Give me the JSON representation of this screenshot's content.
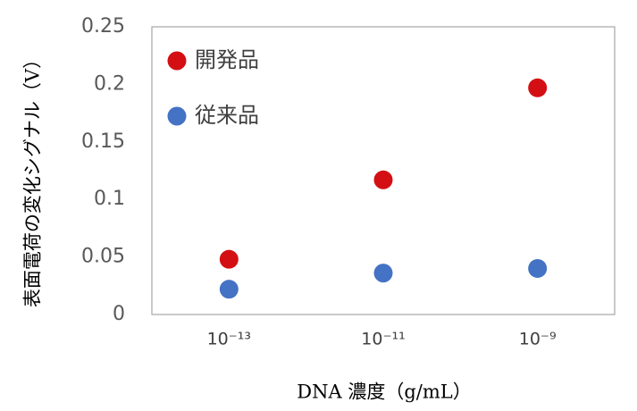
{
  "chart_data": {
    "type": "scatter",
    "y_label": "表面電荷の変化シグナル（V）",
    "x_label": "DNA 濃度（g/mL）",
    "categories": [
      "10⁻¹³",
      "10⁻¹¹",
      "10⁻⁹"
    ],
    "series": [
      {
        "name": "開発品",
        "color": "#d40f14",
        "values": [
          0.048,
          0.117,
          0.197
        ]
      },
      {
        "name": "従来品",
        "color": "#4472c4",
        "values": [
          0.022,
          0.036,
          0.04
        ]
      }
    ],
    "ylim": [
      0,
      0.25
    ],
    "yticks": [
      0,
      0.05,
      0.1,
      0.15,
      0.2,
      0.25
    ],
    "grid": false,
    "legend": "top-left"
  }
}
